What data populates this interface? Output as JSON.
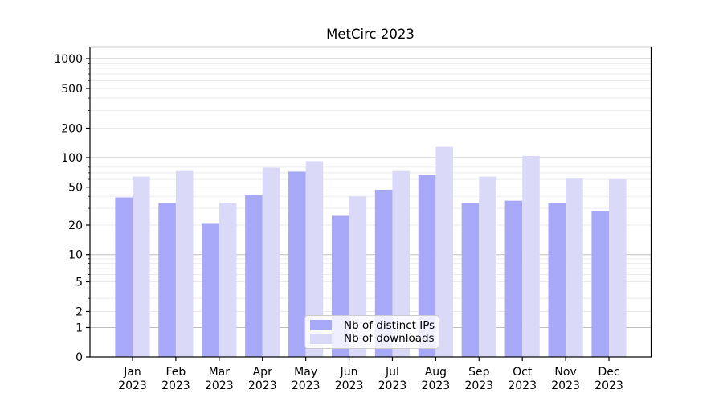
{
  "chart_data": {
    "type": "bar",
    "title": "MetCirc 2023",
    "categories": [
      "Jan 2023",
      "Feb 2023",
      "Mar 2023",
      "Apr 2023",
      "May 2023",
      "Jun 2023",
      "Jul 2023",
      "Aug 2023",
      "Sep 2023",
      "Oct 2023",
      "Nov 2023",
      "Dec 2023"
    ],
    "series": [
      {
        "name": "Nb of distinct IPs",
        "color": "#a8a8f8",
        "values": [
          39,
          34,
          21,
          41,
          72,
          25,
          47,
          66,
          34,
          36,
          34,
          28
        ]
      },
      {
        "name": "Nb of downloads",
        "color": "#dadaf8",
        "values": [
          64,
          73,
          34,
          79,
          92,
          40,
          73,
          129,
          64,
          104,
          61,
          60
        ]
      }
    ],
    "yscale": "symlog",
    "ylim": [
      0,
      1350
    ],
    "yticks": [
      1000,
      500,
      200,
      100,
      50,
      20,
      10,
      5,
      2,
      1,
      0
    ],
    "grid": "major-and-minor horizontal",
    "legend_position": "lower center"
  }
}
